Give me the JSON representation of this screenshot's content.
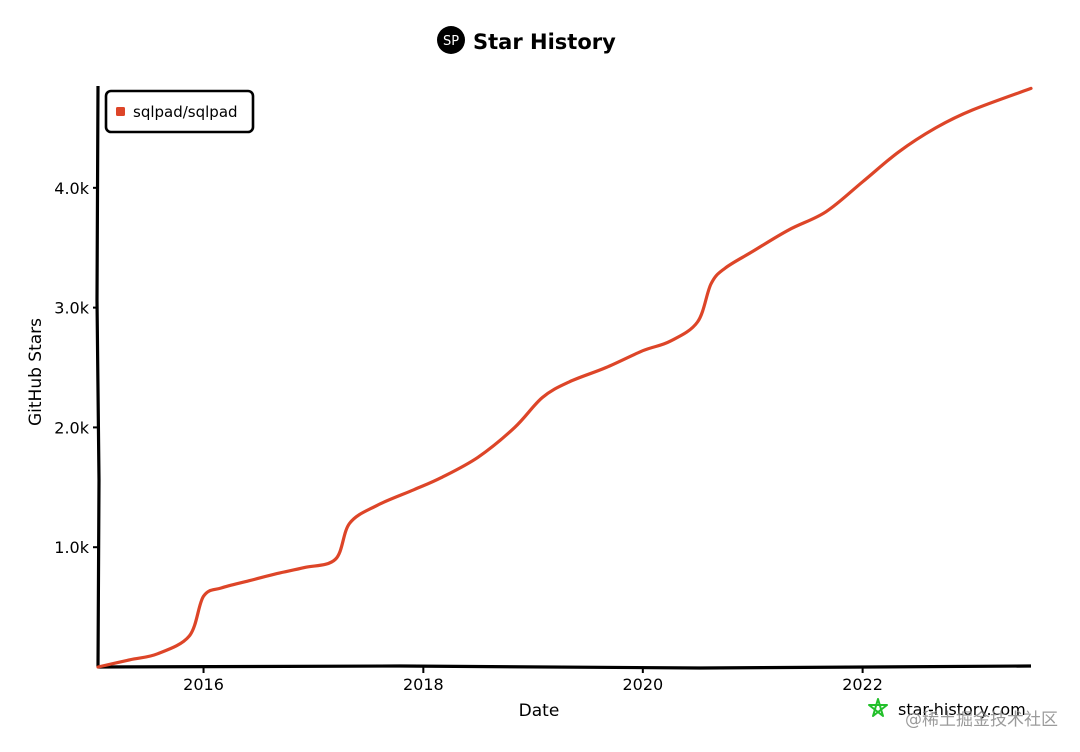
{
  "header": {
    "logo_text": "SP",
    "title": "Star History"
  },
  "chart_data": {
    "type": "line",
    "title": "Star History",
    "xlabel": "Date",
    "ylabel": "GitHub Stars",
    "x_ticks": [
      "2016",
      "2018",
      "2020",
      "2022"
    ],
    "y_ticks": [
      "1.0k",
      "2.0k",
      "3.0k",
      "4.0k"
    ],
    "xlim": [
      "2015-01-15",
      "2023-07-15"
    ],
    "ylim": [
      0,
      4850
    ],
    "legend_position": "top-left",
    "series": [
      {
        "name": "sqlpad/sqlpad",
        "color": "#dd4528",
        "points": [
          [
            "2015-01-15",
            0
          ],
          [
            "2015-05-01",
            60
          ],
          [
            "2015-08-01",
            110
          ],
          [
            "2015-11-15",
            260
          ],
          [
            "2016-01-01",
            590
          ],
          [
            "2016-03-01",
            660
          ],
          [
            "2016-06-01",
            720
          ],
          [
            "2016-09-01",
            780
          ],
          [
            "2016-12-01",
            830
          ],
          [
            "2017-03-15",
            900
          ],
          [
            "2017-05-01",
            1200
          ],
          [
            "2017-08-01",
            1350
          ],
          [
            "2017-12-01",
            1480
          ],
          [
            "2018-03-01",
            1580
          ],
          [
            "2018-07-01",
            1750
          ],
          [
            "2018-11-01",
            2000
          ],
          [
            "2019-02-01",
            2250
          ],
          [
            "2019-05-01",
            2380
          ],
          [
            "2019-09-01",
            2500
          ],
          [
            "2020-01-01",
            2640
          ],
          [
            "2020-04-01",
            2720
          ],
          [
            "2020-07-01",
            2880
          ],
          [
            "2020-08-15",
            3200
          ],
          [
            "2020-10-01",
            3330
          ],
          [
            "2021-01-01",
            3470
          ],
          [
            "2021-05-01",
            3650
          ],
          [
            "2021-09-01",
            3800
          ],
          [
            "2022-01-01",
            4050
          ],
          [
            "2022-05-01",
            4300
          ],
          [
            "2022-09-01",
            4500
          ],
          [
            "2023-01-01",
            4650
          ],
          [
            "2023-07-15",
            4830
          ]
        ]
      }
    ]
  },
  "watermark": {
    "site": "star-history.com",
    "overlay_text": "@稀土掘金技术社区",
    "icon": "star-outline-icon",
    "color": "#22c02a"
  }
}
